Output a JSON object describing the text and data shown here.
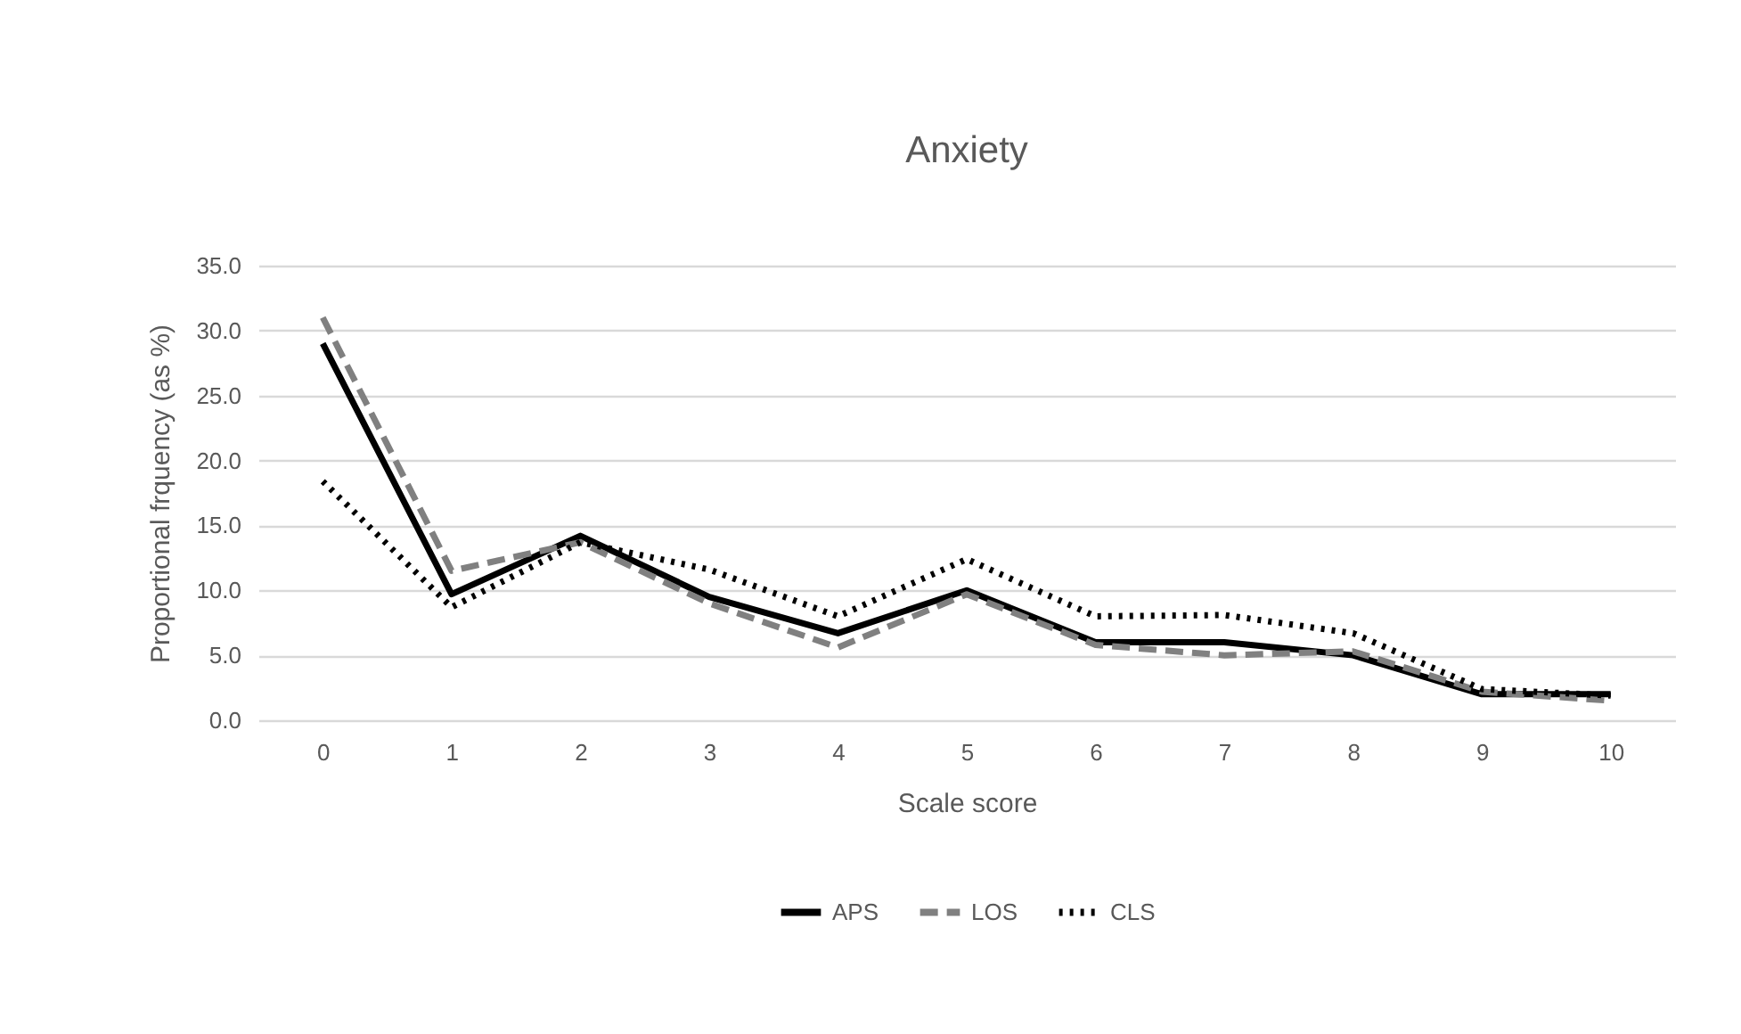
{
  "chart_data": {
    "type": "line",
    "title": "Anxiety",
    "xlabel": "Scale score",
    "ylabel": "Proportional frquency (as %)",
    "categories": [
      "0",
      "1",
      "2",
      "3",
      "4",
      "5",
      "6",
      "7",
      "8",
      "9",
      "10"
    ],
    "series": [
      {
        "name": "APS",
        "color": "#000000",
        "line_style": "solid",
        "values": [
          29.0,
          9.7,
          14.2,
          9.5,
          6.7,
          10.0,
          6.0,
          6.0,
          5.0,
          2.0,
          2.0
        ]
      },
      {
        "name": "LOS",
        "color": "#808080",
        "line_style": "dashed",
        "values": [
          31.0,
          11.5,
          13.7,
          9.0,
          5.6,
          9.7,
          5.8,
          5.0,
          5.3,
          2.2,
          1.5
        ]
      },
      {
        "name": "CLS",
        "color": "#000000",
        "line_style": "dotted",
        "values": [
          18.4,
          8.7,
          13.7,
          11.6,
          8.0,
          12.4,
          8.0,
          8.1,
          6.7,
          2.4,
          1.9
        ]
      }
    ],
    "ylim": [
      0,
      35
    ],
    "yticks": [
      {
        "value": 0,
        "label": "0.0"
      },
      {
        "value": 5,
        "label": "5.0"
      },
      {
        "value": 10,
        "label": "10.0"
      },
      {
        "value": 15,
        "label": "15.0"
      },
      {
        "value": 20,
        "label": "20.0"
      },
      {
        "value": 25,
        "label": "25.0"
      },
      {
        "value": 30,
        "label": "30.0"
      },
      {
        "value": 35,
        "label": "35.0"
      }
    ],
    "grid": "y",
    "legend": "bottom",
    "marker": "none"
  }
}
